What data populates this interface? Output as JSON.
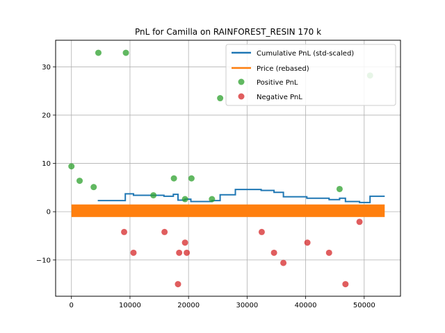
{
  "chart_data": {
    "type": "scatter",
    "title": "PnL for Camilla on RAINFOREST_RESIN 170 k",
    "xlabel": "",
    "ylabel": "",
    "xlim": [
      -2700,
      56200
    ],
    "ylim": [
      -17.5,
      35.5
    ],
    "xticks": [
      0,
      10000,
      20000,
      30000,
      40000,
      50000
    ],
    "xtick_labels": [
      "0",
      "10000",
      "20000",
      "30000",
      "40000",
      "50000"
    ],
    "yticks": [
      -10,
      0,
      10,
      20,
      30
    ],
    "ytick_labels": [
      "−10",
      "0",
      "10",
      "20",
      "30"
    ],
    "grid": true,
    "legend_position": "top-right",
    "colors": {
      "cumulative": "#1f77b4",
      "price": "#ff7f0e",
      "positive": "#2ca02c",
      "negative": "#d62728",
      "grid": "#b0b0b0"
    },
    "series": [
      {
        "name": "Cumulative PnL (std-scaled)",
        "kind": "step",
        "points": [
          [
            4500,
            2.3
          ],
          [
            9200,
            2.3
          ],
          [
            9200,
            3.7
          ],
          [
            10600,
            3.7
          ],
          [
            10600,
            3.4
          ],
          [
            15800,
            3.4
          ],
          [
            15800,
            3.2
          ],
          [
            17400,
            3.2
          ],
          [
            17400,
            3.6
          ],
          [
            18200,
            3.6
          ],
          [
            18200,
            2.4
          ],
          [
            19400,
            2.4
          ],
          [
            19400,
            2.6
          ],
          [
            20400,
            2.6
          ],
          [
            20400,
            2.1
          ],
          [
            24000,
            2.1
          ],
          [
            24000,
            2.3
          ],
          [
            25400,
            2.3
          ],
          [
            25400,
            3.5
          ],
          [
            28000,
            3.5
          ],
          [
            28000,
            4.6
          ],
          [
            32400,
            4.6
          ],
          [
            32400,
            4.4
          ],
          [
            34600,
            4.4
          ],
          [
            34600,
            4.0
          ],
          [
            36200,
            4.0
          ],
          [
            36200,
            3.1
          ],
          [
            40200,
            3.1
          ],
          [
            40200,
            2.8
          ],
          [
            44000,
            2.8
          ],
          [
            44000,
            2.5
          ],
          [
            45800,
            2.5
          ],
          [
            45800,
            2.8
          ],
          [
            46800,
            2.8
          ],
          [
            46800,
            2.1
          ],
          [
            49200,
            2.1
          ],
          [
            49200,
            1.9
          ],
          [
            51000,
            1.9
          ],
          [
            51000,
            3.2
          ],
          [
            53500,
            3.2
          ]
        ]
      },
      {
        "name": "Price (rebased)",
        "kind": "band",
        "x_start": 0,
        "x_end": 53500,
        "y_min": -1.1,
        "y_max": 1.5
      },
      {
        "name": "Positive PnL",
        "kind": "scatter",
        "points": [
          [
            0,
            9.4
          ],
          [
            1400,
            6.4
          ],
          [
            3800,
            5.1
          ],
          [
            4600,
            32.9
          ],
          [
            9300,
            32.9
          ],
          [
            14000,
            3.4
          ],
          [
            17500,
            6.9
          ],
          [
            19400,
            2.6
          ],
          [
            20500,
            6.9
          ],
          [
            24000,
            2.6
          ],
          [
            25400,
            23.5
          ],
          [
            45800,
            4.7
          ],
          [
            51000,
            28.2
          ]
        ]
      },
      {
        "name": "Negative PnL",
        "kind": "scatter",
        "points": [
          [
            9000,
            -4.2
          ],
          [
            10600,
            -8.5
          ],
          [
            15900,
            -4.2
          ],
          [
            18200,
            -15.0
          ],
          [
            18400,
            -8.5
          ],
          [
            19400,
            -6.4
          ],
          [
            19700,
            -8.5
          ],
          [
            32500,
            -4.2
          ],
          [
            34600,
            -8.5
          ],
          [
            36200,
            -10.6
          ],
          [
            40300,
            -6.4
          ],
          [
            44000,
            -8.5
          ],
          [
            46800,
            -15.0
          ],
          [
            49200,
            -2.1
          ]
        ]
      }
    ]
  }
}
